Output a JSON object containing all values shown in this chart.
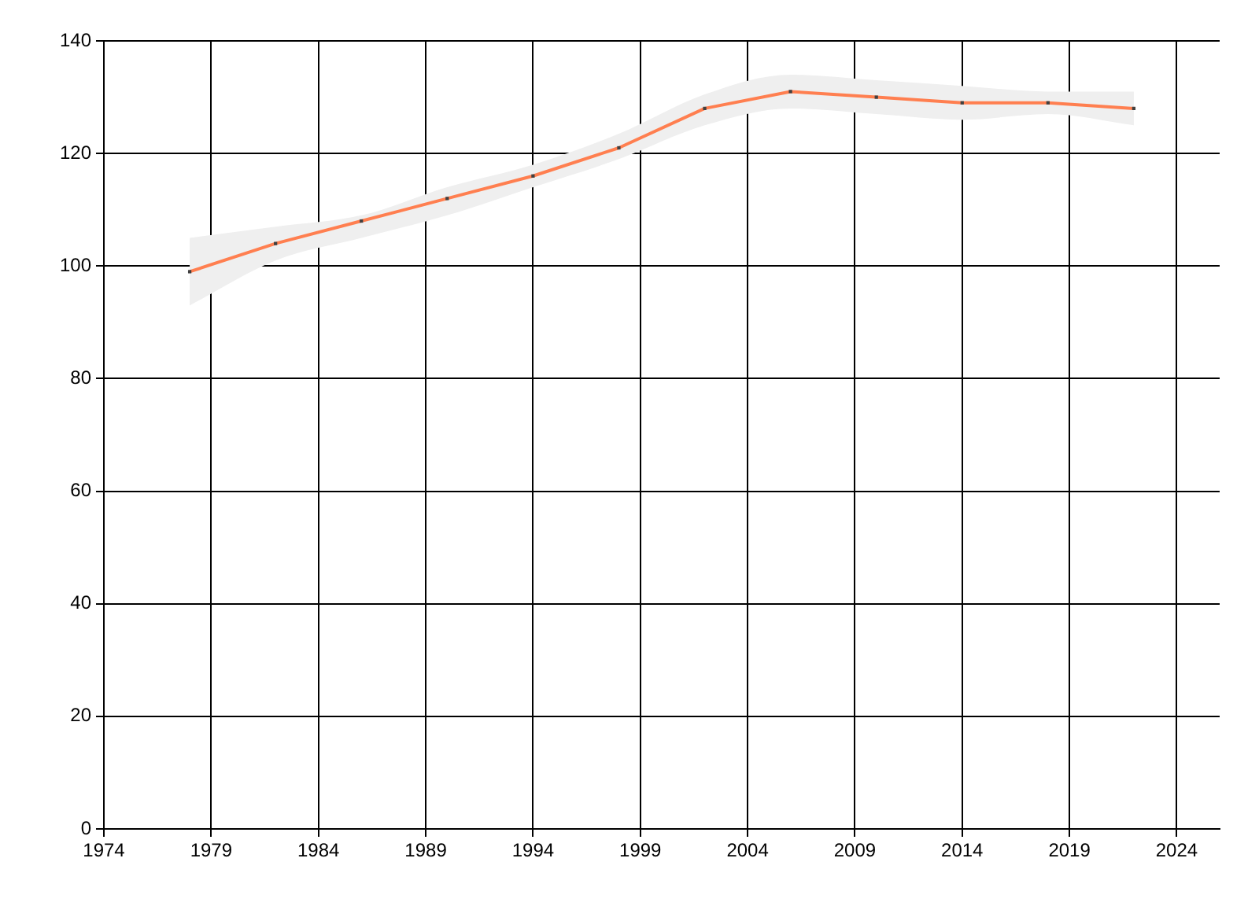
{
  "chart_data": {
    "type": "line",
    "x": [
      1978,
      1982,
      1986,
      1990,
      1994,
      1998,
      2002,
      2006,
      2010,
      2014,
      2018,
      2022
    ],
    "series": [
      {
        "color": "#ff7f50",
        "values": [
          99,
          104,
          108,
          112,
          116,
          121,
          128,
          131,
          130,
          129,
          129,
          128
        ],
        "lower": [
          93,
          101,
          105,
          109,
          114,
          119,
          125,
          128,
          127,
          126,
          127,
          125
        ],
        "upper": [
          105,
          107,
          109,
          114,
          118,
          123.5,
          130.5,
          134,
          133,
          132,
          131,
          131
        ]
      }
    ],
    "xlim": [
      1974,
      2026
    ],
    "xticks": [
      1974,
      1979,
      1984,
      1989,
      1994,
      1999,
      2004,
      2009,
      2014,
      2019,
      2024
    ],
    "ylim": [
      0,
      140
    ],
    "yticks": [
      0,
      20,
      40,
      60,
      80,
      100,
      120,
      140
    ],
    "grid": true,
    "marker": "square",
    "line_style": "solid"
  }
}
